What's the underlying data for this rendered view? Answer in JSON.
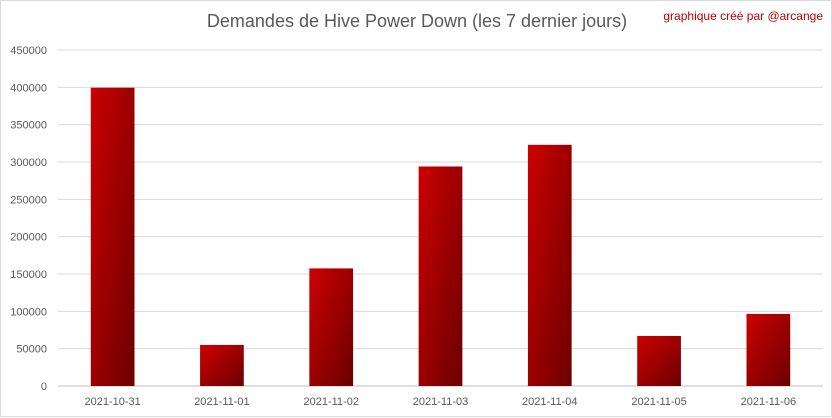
{
  "credit": "graphique créé par @arcange",
  "chart_data": {
    "type": "bar",
    "title": "Demandes de Hive Power Down (les 7 dernier jours)",
    "xlabel": "",
    "ylabel": "",
    "categories": [
      "2021-10-31",
      "2021-11-01",
      "2021-11-02",
      "2021-11-03",
      "2021-11-04",
      "2021-11-05",
      "2021-11-06"
    ],
    "values": [
      399500,
      55000,
      157500,
      294000,
      323000,
      67000,
      96500
    ],
    "ylim": [
      0,
      450000
    ],
    "yticks": [
      "0",
      "50000",
      "100000",
      "150000",
      "200000",
      "250000",
      "300000",
      "350000",
      "400000",
      "450000"
    ],
    "grid": true,
    "legend": "none",
    "bar_color_light": "#cc0000",
    "bar_color_dark": "#6b0000"
  }
}
